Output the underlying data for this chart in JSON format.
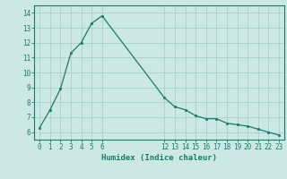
{
  "x": [
    0,
    1,
    2,
    3,
    4,
    5,
    6,
    12,
    13,
    14,
    15,
    16,
    17,
    18,
    19,
    20,
    21,
    22,
    23
  ],
  "y": [
    6.3,
    7.5,
    8.9,
    11.3,
    12.0,
    13.3,
    13.8,
    8.3,
    7.7,
    7.5,
    7.1,
    6.9,
    6.9,
    6.6,
    6.5,
    6.4,
    6.2,
    6.0,
    5.8
  ],
  "line_color": "#1a7a6e",
  "bg_color": "#cce8e5",
  "grid_color": "#a8d0cc",
  "xlabel": "Humidex (Indice chaleur)",
  "xlim": [
    -0.5,
    23.5
  ],
  "ylim": [
    5.5,
    14.5
  ],
  "yticks": [
    6,
    7,
    8,
    9,
    10,
    11,
    12,
    13,
    14
  ],
  "xticks": [
    0,
    1,
    2,
    3,
    4,
    5,
    6,
    12,
    13,
    14,
    15,
    16,
    17,
    18,
    19,
    20,
    21,
    22,
    23
  ],
  "axis_color": "#1a7a6e",
  "tick_color": "#1a7a6e",
  "tick_fontsize": 5.5,
  "xlabel_fontsize": 6.5
}
